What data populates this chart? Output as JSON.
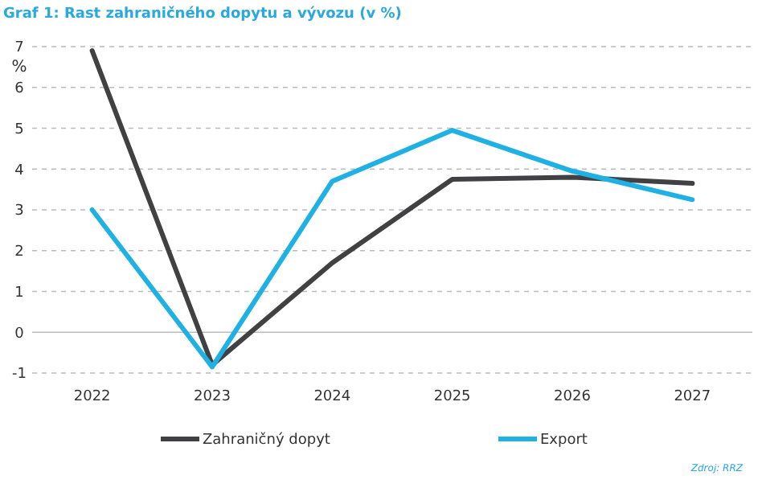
{
  "chart_data": {
    "type": "line",
    "title": "Graf 1: Rast zahraničného dopytu a vývozu (v %)",
    "ylabel": "%",
    "categories": [
      "2022",
      "2023",
      "2024",
      "2025",
      "2026",
      "2027"
    ],
    "series": [
      {
        "name": "Zahraničný dopyt",
        "color": "#414042",
        "values": [
          6.9,
          -0.8,
          1.7,
          3.75,
          3.8,
          3.65
        ]
      },
      {
        "name": "Export",
        "color": "#1fb0e4",
        "values": [
          3.0,
          -0.85,
          3.7,
          4.95,
          3.95,
          3.25
        ]
      }
    ],
    "ylim": [
      -1,
      7
    ],
    "yticks": [
      -1,
      0,
      1,
      2,
      3,
      4,
      5,
      6,
      7
    ],
    "grid": "y",
    "legend": "bottom",
    "marker": "none",
    "line_style": "solid",
    "annotations": [
      "Zdroj: RRZ"
    ]
  }
}
